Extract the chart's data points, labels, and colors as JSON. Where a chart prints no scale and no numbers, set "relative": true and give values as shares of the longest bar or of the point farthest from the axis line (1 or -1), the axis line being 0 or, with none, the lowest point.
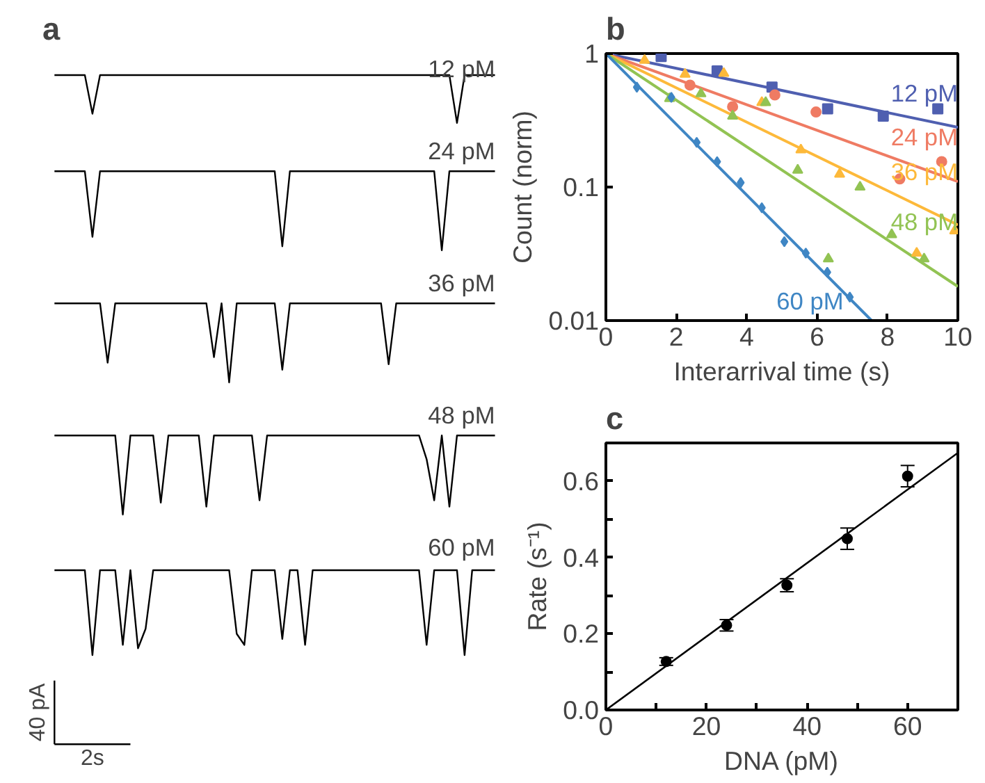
{
  "chart_data": [
    {
      "type": "line",
      "title": "a",
      "relative": true,
      "tick_labels": false,
      "categories": [
        null,
        null,
        null,
        null,
        null,
        null,
        null,
        null,
        null,
        null,
        null,
        null,
        null,
        null,
        null,
        null,
        null,
        null,
        null,
        null,
        null,
        null,
        null,
        null,
        null,
        null,
        null,
        null,
        null,
        null,
        null,
        null,
        null,
        null,
        null,
        null,
        null,
        null,
        null,
        null,
        null,
        null,
        null,
        null,
        null,
        null,
        null,
        null,
        null,
        null,
        null,
        null,
        null,
        null,
        null,
        null,
        null,
        null,
        null
      ],
      "series": [
        {
          "name": "12 pM",
          "color": "#000000",
          "values": [
            1,
            1,
            1,
            1,
            1,
            0.19,
            1,
            1,
            1,
            1,
            1,
            1,
            1,
            1,
            1,
            1,
            1,
            1,
            1,
            1,
            1,
            1,
            1,
            1,
            1,
            1,
            1,
            1,
            1,
            1,
            1,
            1,
            1,
            1,
            1,
            1,
            1,
            1,
            1,
            1,
            1,
            1,
            1,
            1,
            1,
            1,
            1,
            1,
            1,
            1,
            1,
            1,
            1,
            0,
            1,
            1,
            1,
            1,
            1
          ]
        }
      ]
    },
    {
      "type": "line",
      "relative": true,
      "tick_labels": false,
      "categories": [
        null,
        null,
        null,
        null,
        null,
        null,
        null,
        null,
        null,
        null,
        null,
        null,
        null,
        null,
        null,
        null,
        null,
        null,
        null,
        null,
        null,
        null,
        null,
        null,
        null,
        null,
        null,
        null,
        null,
        null,
        null,
        null,
        null,
        null,
        null,
        null,
        null,
        null,
        null,
        null,
        null,
        null,
        null,
        null,
        null,
        null,
        null,
        null,
        null,
        null,
        null,
        null,
        null,
        null,
        null,
        null,
        null,
        null,
        null
      ],
      "series": [
        {
          "name": "24 pM",
          "color": "#000000",
          "values": [
            1,
            1,
            1,
            1,
            1,
            0.17,
            1,
            1,
            1,
            1,
            1,
            1,
            1,
            1,
            1,
            1,
            1,
            1,
            1,
            1,
            1,
            1,
            1,
            1,
            1,
            1,
            1,
            1,
            1,
            1,
            0.05,
            1,
            1,
            1,
            1,
            1,
            1,
            1,
            1,
            1,
            1,
            1,
            1,
            1,
            1,
            1,
            1,
            1,
            1,
            1,
            1,
            0,
            1,
            1,
            1,
            1,
            1,
            1,
            1
          ]
        }
      ]
    },
    {
      "type": "line",
      "relative": true,
      "tick_labels": false,
      "categories": [
        null,
        null,
        null,
        null,
        null,
        null,
        null,
        null,
        null,
        null,
        null,
        null,
        null,
        null,
        null,
        null,
        null,
        null,
        null,
        null,
        null,
        null,
        null,
        null,
        null,
        null,
        null,
        null,
        null,
        null,
        null,
        null,
        null,
        null,
        null,
        null,
        null,
        null,
        null,
        null,
        null,
        null,
        null,
        null,
        null,
        null,
        null,
        null,
        null,
        null,
        null,
        null,
        null,
        null,
        null,
        null,
        null,
        null,
        null
      ],
      "series": [
        {
          "name": "36 pM",
          "color": "#000000",
          "values": [
            1,
            1,
            1,
            1,
            1,
            1,
            1,
            0.25,
            1,
            1,
            1,
            1,
            1,
            1,
            1,
            1,
            1,
            1,
            1,
            1,
            1,
            0.32,
            1,
            0,
            1,
            1,
            1,
            1,
            1,
            1,
            0.16,
            1,
            1,
            1,
            1,
            1,
            1,
            1,
            1,
            1,
            1,
            1,
            1,
            1,
            0.23,
            1,
            1,
            1,
            1,
            1,
            1,
            1,
            1,
            1,
            1,
            1,
            1,
            1,
            1
          ]
        }
      ]
    },
    {
      "type": "line",
      "relative": true,
      "tick_labels": false,
      "categories": [
        null,
        null,
        null,
        null,
        null,
        null,
        null,
        null,
        null,
        null,
        null,
        null,
        null,
        null,
        null,
        null,
        null,
        null,
        null,
        null,
        null,
        null,
        null,
        null,
        null,
        null,
        null,
        null,
        null,
        null,
        null,
        null,
        null,
        null,
        null,
        null,
        null,
        null,
        null,
        null,
        null,
        null,
        null,
        null,
        null,
        null,
        null,
        null,
        null,
        null,
        null,
        null,
        null,
        null,
        null,
        null,
        null,
        null,
        null
      ],
      "series": [
        {
          "name": "48 pM",
          "color": "#000000",
          "values": [
            1,
            1,
            1,
            1,
            1,
            1,
            1,
            1,
            1,
            0,
            1,
            1,
            1,
            1,
            0.15,
            1,
            1,
            1,
            1,
            1,
            0.1,
            1,
            1,
            1,
            1,
            1,
            1,
            0.18,
            1,
            1,
            1,
            1,
            1,
            1,
            1,
            1,
            1,
            1,
            1,
            1,
            1,
            1,
            1,
            1,
            1,
            1,
            1,
            1,
            1,
            0.7,
            0.18,
            1,
            0.1,
            1,
            1,
            1,
            1,
            1,
            1
          ]
        }
      ]
    },
    {
      "type": "line",
      "relative": true,
      "tick_labels": false,
      "annotations": [
        "40 pA",
        "2s"
      ],
      "categories": [
        null,
        null,
        null,
        null,
        null,
        null,
        null,
        null,
        null,
        null,
        null,
        null,
        null,
        null,
        null,
        null,
        null,
        null,
        null,
        null,
        null,
        null,
        null,
        null,
        null,
        null,
        null,
        null,
        null,
        null,
        null,
        null,
        null,
        null,
        null,
        null,
        null,
        null,
        null,
        null,
        null,
        null,
        null,
        null,
        null,
        null,
        null,
        null,
        null,
        null,
        null,
        null,
        null,
        null,
        null,
        null,
        null,
        null,
        null
      ],
      "series": [
        {
          "name": "60 pM",
          "color": "#000000",
          "values": [
            1,
            1,
            1,
            1,
            1,
            0,
            1,
            1,
            1,
            0.12,
            1,
            0.08,
            0.31,
            1,
            1,
            1,
            1,
            1,
            1,
            1,
            1,
            1,
            1,
            1,
            0.25,
            0.12,
            1,
            1,
            1,
            1,
            0.19,
            1,
            1,
            0.12,
            1,
            1,
            1,
            1,
            1,
            1,
            1,
            1,
            1,
            1,
            1,
            1,
            1,
            1,
            1,
            0.12,
            1,
            1,
            1,
            1,
            0,
            1,
            1,
            1,
            1
          ]
        }
      ]
    },
    {
      "type": "scatter",
      "title": "b",
      "xlabel": "Interarrival time (s)",
      "ylabel": "Count (norm)",
      "log": "y",
      "xlim": [
        0,
        10
      ],
      "ylim": [
        0.01,
        1
      ],
      "xticks": [
        0,
        2,
        4,
        6,
        8,
        10
      ],
      "yticks": [
        0.01,
        0.1,
        1
      ],
      "grid": false,
      "annotations": [
        "12 pM",
        "24 pM",
        "36 pM",
        "48 pM",
        "60 pM"
      ],
      "series": [
        {
          "type": "line",
          "color": "#4f5fb0",
          "x": [
            0,
            10
          ],
          "values": [
            1,
            0.28
          ]
        },
        {
          "type": "line",
          "color": "#ef7b63",
          "x": [
            0,
            10
          ],
          "values": [
            1,
            0.11
          ]
        },
        {
          "type": "line",
          "color": "#fdb93a",
          "x": [
            0,
            10
          ],
          "values": [
            1,
            0.052
          ]
        },
        {
          "type": "line",
          "color": "#92c353",
          "x": [
            0,
            10
          ],
          "values": [
            1,
            0.018
          ]
        },
        {
          "type": "line",
          "color": "#3f86c4",
          "x": [
            0,
            7.55
          ],
          "values": [
            1,
            0.01
          ]
        },
        {
          "type": "scatter",
          "marker": "square",
          "color": "#4f5fb0",
          "x": [
            1.57,
            3.16,
            4.72,
            6.3,
            7.88,
            9.43
          ],
          "values": [
            0.95,
            0.74,
            0.56,
            0.385,
            0.34,
            0.385
          ]
        },
        {
          "type": "scatter",
          "marker": "circle",
          "color": "#ef7b63",
          "x": [
            2.39,
            3.6,
            4.8,
            5.97,
            8.35,
            9.54
          ],
          "values": [
            0.58,
            0.4,
            0.49,
            0.365,
            0.115,
            0.155
          ]
        },
        {
          "type": "scatter",
          "marker": "triangle",
          "color": "#fdb93a",
          "x": [
            1.1,
            2.25,
            3.35,
            4.43,
            5.54,
            6.64,
            8.83,
            9.91
          ],
          "values": [
            0.89,
            0.7,
            0.71,
            0.43,
            0.19,
            0.125,
            0.032,
            0.047
          ]
        },
        {
          "type": "scatter",
          "marker": "triangle",
          "color": "#92c353",
          "x": [
            1.81,
            2.7,
            3.6,
            4.54,
            5.45,
            6.32,
            7.22,
            8.12,
            9.04
          ],
          "values": [
            0.46,
            0.5,
            0.34,
            0.43,
            0.134,
            0.029,
            0.1,
            0.044,
            0.029
          ]
        },
        {
          "type": "scatter",
          "marker": "diamond",
          "color": "#3f86c4",
          "x": [
            0.88,
            1.86,
            2.58,
            3.16,
            3.83,
            4.43,
            5.07,
            5.68,
            6.29,
            6.93
          ],
          "values": [
            0.56,
            0.47,
            0.216,
            0.155,
            0.108,
            0.07,
            0.039,
            0.032,
            0.023,
            0.015
          ]
        }
      ]
    },
    {
      "type": "scatter",
      "title": "c",
      "xlabel": "DNA (pM)",
      "ylabel": "Rate (s⁻¹)",
      "xlim": [
        0,
        70
      ],
      "ylim": [
        0,
        0.7
      ],
      "grid": false,
      "xticks": [
        0,
        {
          "value": 10,
          "label": null
        },
        20,
        {
          "value": 30,
          "label": null
        },
        40,
        {
          "value": 50,
          "label": null
        },
        60,
        {
          "value": 70,
          "label": null
        }
      ],
      "yticks": [
        {
          "value": 0,
          "label": "0.0"
        },
        {
          "value": 0.1,
          "label": null
        },
        {
          "value": 0.2,
          "label": "0.2"
        },
        {
          "value": 0.3,
          "label": null
        },
        {
          "value": 0.4,
          "label": "0.4"
        },
        {
          "value": 0.5,
          "label": null
        },
        {
          "value": 0.6,
          "label": "0.6"
        }
      ],
      "series": [
        {
          "type": "line",
          "color": "#000000",
          "x": [
            0,
            70
          ],
          "values": [
            0,
            0.674
          ]
        },
        {
          "type": "scatter",
          "marker": "circle",
          "color": "#000000",
          "x": [
            12,
            24,
            36,
            48,
            60
          ],
          "values": [
            0.127,
            0.222,
            0.327,
            0.449,
            0.613
          ],
          "errors": [
            0.01,
            0.015,
            0.017,
            0.028,
            0.028
          ]
        }
      ]
    }
  ]
}
